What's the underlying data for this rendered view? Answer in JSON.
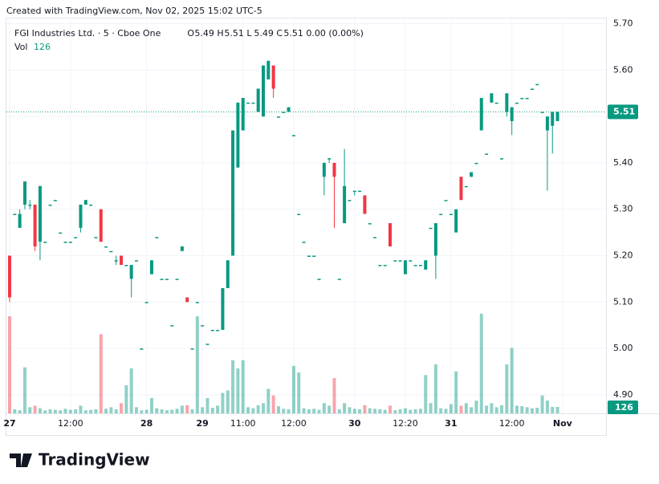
{
  "header": {
    "credit": "Created with TradingView.com, Nov 02, 2025 15:02 UTC-5"
  },
  "chart_data": {
    "type": "candlestick",
    "symbol": "FGI Industries Ltd. · 5 · Cboe One",
    "legend": {
      "o_label": "O",
      "open": "5.49",
      "h_label": "H",
      "high": "5.51",
      "l_label": "L",
      "low": "5.49",
      "c_label": "C",
      "close": "5.51",
      "change": "0.00 (0.00%)",
      "vol_label": "Vol",
      "vol": "126"
    },
    "up_color": "#089981",
    "down_color": "#f23645",
    "ylim": [
      4.86,
      5.72
    ],
    "yticks": [
      {
        "value": 4.9,
        "label": "4.90"
      },
      {
        "value": 5.0,
        "label": "5.00"
      },
      {
        "value": 5.1,
        "label": "5.10"
      },
      {
        "value": 5.2,
        "label": "5.20"
      },
      {
        "value": 5.3,
        "label": "5.30"
      },
      {
        "value": 5.4,
        "label": "5.40"
      },
      {
        "value": 5.5,
        "label": "5.50"
      },
      {
        "value": 5.6,
        "label": "5.60"
      },
      {
        "value": 5.7,
        "label": "5.70"
      }
    ],
    "last_price": 5.51,
    "last_volume": 126,
    "volume_lim": [
      0,
      2200
    ],
    "grid": true,
    "categories": [
      "27",
      null,
      null,
      null,
      null,
      null,
      null,
      null,
      null,
      null,
      null,
      null,
      "12:00",
      null,
      null,
      null,
      null,
      null,
      null,
      null,
      null,
      null,
      null,
      null,
      null,
      null,
      null,
      "28",
      null,
      null,
      null,
      null,
      null,
      null,
      null,
      null,
      null,
      null,
      "29",
      null,
      null,
      null,
      null,
      null,
      null,
      null,
      "11:00",
      null,
      null,
      null,
      null,
      null,
      null,
      null,
      null,
      null,
      "12:00",
      null,
      null,
      null,
      null,
      null,
      null,
      null,
      null,
      null,
      null,
      null,
      "30",
      null,
      null,
      null,
      null,
      null,
      null,
      null,
      null,
      null,
      "12:20",
      null,
      null,
      null,
      null,
      null,
      null,
      null,
      null,
      "31",
      null,
      null,
      null,
      null,
      null,
      null,
      null,
      null,
      null,
      null,
      null,
      "12:00",
      null,
      null,
      null,
      null,
      null,
      null,
      null,
      null,
      null,
      "Nov"
    ],
    "ohlc": [
      [
        5.2,
        5.2,
        5.1,
        5.11
      ],
      [
        5.29,
        5.29,
        5.29,
        5.29
      ],
      [
        5.26,
        5.3,
        5.26,
        5.29
      ],
      [
        5.31,
        5.36,
        5.3,
        5.36
      ],
      [
        5.31,
        5.32,
        5.3,
        5.31
      ],
      [
        5.31,
        5.31,
        5.21,
        5.22
      ],
      [
        5.23,
        5.35,
        5.19,
        5.35
      ],
      [
        5.23,
        5.23,
        5.23,
        5.23
      ],
      [
        5.31,
        5.31,
        5.31,
        5.31
      ],
      [
        5.32,
        5.32,
        5.32,
        5.32
      ],
      [
        5.25,
        5.25,
        5.25,
        5.25
      ],
      [
        5.23,
        5.23,
        5.23,
        5.23
      ],
      [
        5.23,
        5.23,
        5.23,
        5.23
      ],
      [
        5.24,
        5.24,
        5.24,
        5.24
      ],
      [
        5.26,
        5.31,
        5.25,
        5.31
      ],
      [
        5.31,
        5.32,
        5.31,
        5.32
      ],
      [
        5.31,
        5.31,
        5.31,
        5.31
      ],
      [
        5.24,
        5.24,
        5.24,
        5.24
      ],
      [
        5.3,
        5.3,
        5.23,
        5.23
      ],
      [
        5.22,
        5.22,
        5.22,
        5.22
      ],
      [
        5.21,
        5.21,
        5.21,
        5.21
      ],
      [
        5.19,
        5.2,
        5.18,
        5.19
      ],
      [
        5.2,
        5.2,
        5.18,
        5.18
      ],
      [
        5.18,
        5.18,
        5.18,
        5.18
      ],
      [
        5.15,
        5.18,
        5.11,
        5.18
      ],
      [
        5.19,
        5.19,
        5.19,
        5.19
      ],
      [
        5.0,
        5.0,
        5.0,
        5.0
      ],
      [
        5.1,
        5.1,
        5.1,
        5.1
      ],
      [
        5.16,
        5.19,
        5.16,
        5.19
      ],
      [
        5.24,
        5.24,
        5.24,
        5.24
      ],
      [
        5.15,
        5.15,
        5.15,
        5.15
      ],
      [
        5.15,
        5.15,
        5.15,
        5.15
      ],
      [
        5.05,
        5.05,
        5.05,
        5.05
      ],
      [
        5.15,
        5.15,
        5.15,
        5.15
      ],
      [
        5.21,
        5.22,
        5.21,
        5.22
      ],
      [
        5.11,
        5.11,
        5.1,
        5.1
      ],
      [
        5.0,
        5.0,
        5.0,
        5.0
      ],
      [
        5.1,
        5.1,
        5.1,
        5.1
      ],
      [
        5.05,
        5.05,
        5.05,
        5.05
      ],
      [
        5.01,
        5.01,
        5.01,
        5.01
      ],
      [
        5.04,
        5.04,
        5.04,
        5.04
      ],
      [
        5.04,
        5.04,
        5.04,
        5.04
      ],
      [
        5.04,
        5.13,
        5.04,
        5.13
      ],
      [
        5.13,
        5.19,
        5.13,
        5.19
      ],
      [
        5.2,
        5.47,
        5.2,
        5.47
      ],
      [
        5.39,
        5.53,
        5.39,
        5.53
      ],
      [
        5.47,
        5.54,
        5.47,
        5.54
      ],
      [
        5.53,
        5.53,
        5.53,
        5.53
      ],
      [
        5.53,
        5.53,
        5.53,
        5.53
      ],
      [
        5.51,
        5.56,
        5.51,
        5.56
      ],
      [
        5.5,
        5.61,
        5.5,
        5.61
      ],
      [
        5.58,
        5.62,
        5.58,
        5.62
      ],
      [
        5.61,
        5.61,
        5.54,
        5.56
      ],
      [
        5.5,
        5.5,
        5.5,
        5.5
      ],
      [
        5.51,
        5.51,
        5.51,
        5.51
      ],
      [
        5.51,
        5.52,
        5.51,
        5.52
      ],
      [
        5.46,
        5.46,
        5.46,
        5.46
      ],
      [
        5.29,
        5.29,
        5.29,
        5.29
      ],
      [
        5.23,
        5.23,
        5.23,
        5.23
      ],
      [
        5.2,
        5.2,
        5.2,
        5.2
      ],
      [
        5.2,
        5.2,
        5.2,
        5.2
      ],
      [
        5.15,
        5.15,
        5.15,
        5.15
      ],
      [
        5.37,
        5.4,
        5.33,
        5.4
      ],
      [
        5.41,
        5.41,
        5.4,
        5.41
      ],
      [
        5.4,
        5.4,
        5.26,
        5.37
      ],
      [
        5.15,
        5.15,
        5.15,
        5.15
      ],
      [
        5.27,
        5.43,
        5.27,
        5.35
      ],
      [
        5.32,
        5.32,
        5.32,
        5.32
      ],
      [
        5.34,
        5.34,
        5.33,
        5.34
      ],
      [
        5.34,
        5.34,
        5.34,
        5.34
      ],
      [
        5.33,
        5.33,
        5.29,
        5.29
      ],
      [
        5.27,
        5.27,
        5.27,
        5.27
      ],
      [
        5.24,
        5.24,
        5.24,
        5.24
      ],
      [
        5.18,
        5.18,
        5.18,
        5.18
      ],
      [
        5.18,
        5.18,
        5.18,
        5.18
      ],
      [
        5.27,
        5.27,
        5.22,
        5.22
      ],
      [
        5.19,
        5.19,
        5.19,
        5.19
      ],
      [
        5.19,
        5.19,
        5.19,
        5.19
      ],
      [
        5.16,
        5.19,
        5.16,
        5.19
      ],
      [
        5.19,
        5.19,
        5.19,
        5.19
      ],
      [
        5.18,
        5.18,
        5.18,
        5.18
      ],
      [
        5.18,
        5.18,
        5.18,
        5.18
      ],
      [
        5.17,
        5.19,
        5.17,
        5.19
      ],
      [
        5.26,
        5.26,
        5.26,
        5.26
      ],
      [
        5.2,
        5.27,
        5.15,
        5.27
      ],
      [
        5.29,
        5.29,
        5.29,
        5.29
      ],
      [
        5.32,
        5.32,
        5.32,
        5.32
      ],
      [
        5.29,
        5.29,
        5.29,
        5.29
      ],
      [
        5.25,
        5.3,
        5.25,
        5.3
      ],
      [
        5.37,
        5.37,
        5.32,
        5.32
      ],
      [
        5.35,
        5.35,
        5.35,
        5.35
      ],
      [
        5.37,
        5.38,
        5.37,
        5.38
      ],
      [
        5.4,
        5.4,
        5.4,
        5.4
      ],
      [
        5.47,
        5.54,
        5.47,
        5.54
      ],
      [
        5.42,
        5.42,
        5.42,
        5.42
      ],
      [
        5.53,
        5.55,
        5.53,
        5.55
      ],
      [
        5.53,
        5.53,
        5.53,
        5.53
      ],
      [
        5.41,
        5.41,
        5.41,
        5.41
      ],
      [
        5.51,
        5.55,
        5.5,
        5.55
      ],
      [
        5.49,
        5.52,
        5.46,
        5.52
      ],
      [
        5.53,
        5.53,
        5.53,
        5.53
      ],
      [
        5.54,
        5.54,
        5.54,
        5.54
      ],
      [
        5.54,
        5.54,
        5.54,
        5.54
      ],
      [
        5.56,
        5.56,
        5.56,
        5.56
      ],
      [
        5.57,
        5.57,
        5.57,
        5.57
      ],
      [
        5.51,
        5.51,
        5.51,
        5.51
      ],
      [
        5.47,
        5.5,
        5.34,
        5.5
      ],
      [
        5.48,
        5.51,
        5.42,
        5.51
      ],
      [
        5.49,
        5.51,
        5.49,
        5.51
      ],
      null
    ],
    "volume": [
      1900,
      80,
      60,
      900,
      120,
      150,
      100,
      60,
      80,
      70,
      60,
      90,
      70,
      80,
      150,
      60,
      70,
      80,
      1550,
      90,
      120,
      80,
      200,
      550,
      880,
      120,
      60,
      70,
      300,
      100,
      80,
      60,
      70,
      90,
      150,
      160,
      80,
      1900,
      120,
      300,
      110,
      150,
      400,
      450,
      1040,
      880,
      1040,
      120,
      100,
      160,
      200,
      480,
      350,
      140,
      90,
      80,
      930,
      800,
      100,
      80,
      90,
      70,
      200,
      150,
      690,
      80,
      200,
      120,
      90,
      80,
      160,
      100,
      90,
      80,
      70,
      150,
      60,
      80,
      100,
      70,
      80,
      90,
      750,
      200,
      960,
      100,
      90,
      180,
      820,
      150,
      200,
      120,
      250,
      1950,
      150,
      200,
      120,
      160,
      960,
      1280,
      150,
      140,
      120,
      100,
      110,
      350,
      250,
      126,
      126,
      null
    ],
    "brand": "TradingView"
  }
}
